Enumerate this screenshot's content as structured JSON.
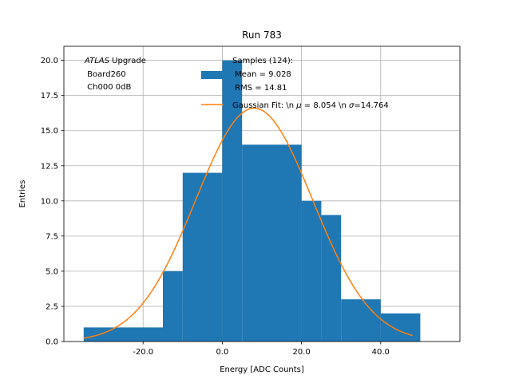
{
  "chart_data": {
    "type": "bar",
    "title": "Run 783",
    "xlabel": "Energy [ADC Counts]",
    "ylabel": "Entries",
    "xlim": [
      -40,
      60
    ],
    "ylim": [
      0,
      21
    ],
    "grid": true,
    "x_ticks": [
      -20,
      0,
      20,
      40
    ],
    "x_tick_labels": [
      "-20.0",
      "0.0",
      "20.0",
      "40.0"
    ],
    "y_ticks": [
      0,
      2.5,
      5,
      7.5,
      10,
      12.5,
      15,
      17.5,
      20
    ],
    "y_tick_labels": [
      "0.0",
      "2.5",
      "5.0",
      "7.5",
      "10.0",
      "12.5",
      "15.0",
      "17.5",
      "20.0"
    ],
    "histogram": {
      "color": "#1f77b4",
      "bins": [
        {
          "from": -35,
          "to": -15,
          "count": 1
        },
        {
          "from": -15,
          "to": -10,
          "count": 5
        },
        {
          "from": -10,
          "to": 0,
          "count": 12
        },
        {
          "from": 0,
          "to": 5,
          "count": 20
        },
        {
          "from": 5,
          "to": 20,
          "count": 14
        },
        {
          "from": 20,
          "to": 25,
          "count": 10
        },
        {
          "from": 25,
          "to": 30,
          "count": 9
        },
        {
          "from": 30,
          "to": 40,
          "count": 3
        },
        {
          "from": 40,
          "to": 50,
          "count": 2
        }
      ]
    },
    "gaussian_fit": {
      "color": "#ff7f0e",
      "mu": 8.054,
      "sigma": 14.764,
      "amplitude": 16.6,
      "x_range": [
        -35,
        48
      ]
    },
    "legend_placement": "top-right",
    "legend": {
      "samples_lines": [
        "Samples (124):",
        " Mean = 9.028",
        " RMS = 14.81"
      ],
      "fit_label_prefix": "Gaussian Fit: \\n ",
      "fit_mu_symbol": "μ",
      "fit_mu_value": " = 8.054 \\n ",
      "fit_sigma_symbol": "σ",
      "fit_sigma_value": "=14.764"
    },
    "annotation": {
      "italic": "ATLAS",
      "rest": " Upgrade",
      "line2": " Board260",
      "line3": " Ch000 0dB"
    }
  }
}
